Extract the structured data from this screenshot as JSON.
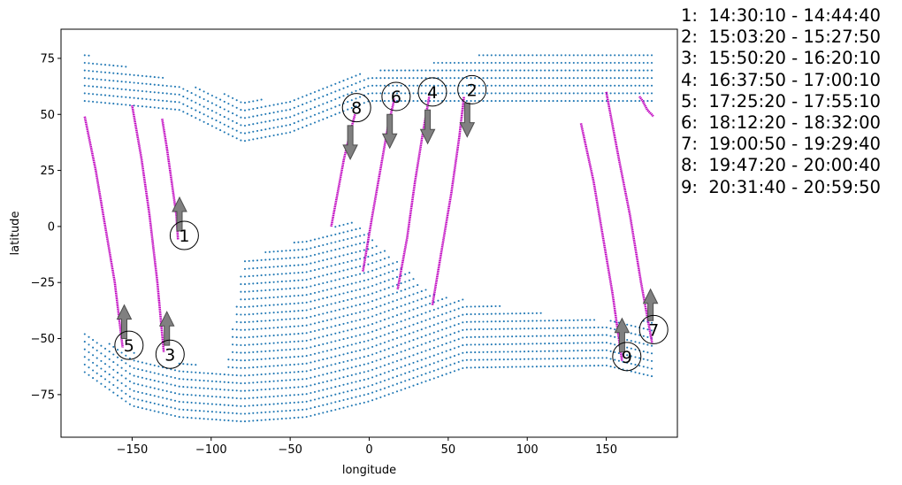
{
  "chart_data": {
    "type": "scatter",
    "title": "",
    "xlabel": "longitude",
    "ylabel": "latitude",
    "xlim": [
      -195,
      195
    ],
    "ylim": [
      -94,
      88
    ],
    "xticks": [
      -150,
      -100,
      -50,
      0,
      50,
      100,
      150
    ],
    "yticks": [
      -75,
      -50,
      -25,
      0,
      25,
      50,
      75
    ],
    "xtick_labels": [
      "−150",
      "−100",
      "−50",
      "0",
      "50",
      "100",
      "150"
    ],
    "ytick_labels": [
      "−75",
      "−50",
      "−25",
      "0",
      "25",
      "50",
      "75"
    ],
    "grid": false,
    "colors": {
      "points": "#1f77b4",
      "tracks": "#bf00bf",
      "arrows": "#808080"
    },
    "point_regions": [
      {
        "x": [
          -180,
          180
        ],
        "y_top": [
          [
            -180,
            77
          ],
          [
            -100,
            60
          ],
          [
            -60,
            56
          ],
          [
            -10,
            68
          ],
          [
            40,
            73
          ],
          [
            80,
            78
          ],
          [
            180,
            78
          ]
        ],
        "y_bottom": [
          [
            -180,
            56
          ],
          [
            -120,
            52
          ],
          [
            -80,
            38
          ],
          [
            -50,
            42
          ],
          [
            0,
            56
          ],
          [
            60,
            56
          ],
          [
            180,
            56
          ]
        ]
      },
      {
        "x": [
          -180,
          180
        ],
        "y_top": [
          [
            -180,
            -48
          ],
          [
            -135,
            -60
          ],
          [
            -90,
            -63
          ],
          [
            -80,
            -15
          ],
          [
            -40,
            -5
          ],
          [
            -10,
            3
          ],
          [
            40,
            -30
          ],
          [
            120,
            -40
          ],
          [
            150,
            -42
          ],
          [
            180,
            -42
          ]
        ],
        "y_bottom": [
          [
            -180,
            -65
          ],
          [
            -150,
            -80
          ],
          [
            -120,
            -85
          ],
          [
            -80,
            -87
          ],
          [
            -40,
            -85
          ],
          [
            0,
            -78
          ],
          [
            60,
            -63
          ],
          [
            150,
            -62
          ],
          [
            180,
            -67
          ]
        ]
      }
    ],
    "tracks": [
      {
        "id": "1",
        "time": "14:30:10 - 14:44:40",
        "x": [
          -131,
          -128,
          -125,
          -122,
          -121
        ],
        "y": [
          48,
          35,
          20,
          5,
          -6
        ],
        "arrow": {
          "x": -120,
          "y_from": -2,
          "y_to": 13
        },
        "label_xy": [
          -117,
          -4
        ]
      },
      {
        "id": "2",
        "time": "15:03:20 - 15:27:50",
        "x": [
          40,
          46,
          52,
          57,
          60
        ],
        "y": [
          -35,
          -10,
          15,
          40,
          58
        ],
        "arrow": {
          "x": 62,
          "y_from": 55,
          "y_to": 40
        },
        "label_xy": [
          65,
          61
        ]
      },
      {
        "id": "3",
        "time": "15:50:20 - 16:20:10",
        "x": [
          -150,
          -144,
          -139,
          -134,
          -130
        ],
        "y": [
          54,
          30,
          5,
          -25,
          -56
        ],
        "arrow": {
          "x": -128,
          "y_from": -53,
          "y_to": -38
        },
        "label_xy": [
          -126,
          -57
        ]
      },
      {
        "id": "4",
        "time": "16:37:50 - 17:00:10",
        "x": [
          18,
          24,
          29,
          34,
          38
        ],
        "y": [
          -28,
          -5,
          20,
          42,
          58
        ],
        "arrow": {
          "x": 37,
          "y_from": 52,
          "y_to": 37
        },
        "label_xy": [
          40,
          60
        ]
      },
      {
        "id": "5",
        "time": "17:25:20 - 17:55:10",
        "x": [
          -180,
          -173,
          -167,
          -161,
          -156
        ],
        "y": [
          49,
          25,
          0,
          -25,
          -54
        ],
        "arrow": {
          "x": -155,
          "y_from": -50,
          "y_to": -35
        },
        "label_xy": [
          -152,
          -53
        ]
      },
      {
        "id": "6",
        "time": "18:12:20 - 18:32:00",
        "x": [
          -4,
          2,
          7,
          12,
          16
        ],
        "y": [
          -20,
          5,
          25,
          45,
          57
        ],
        "arrow": {
          "x": 13,
          "y_from": 50,
          "y_to": 35
        },
        "label_xy": [
          17,
          58
        ]
      },
      {
        "id": "7",
        "time": "19:00:50 - 19:29:40",
        "x": [
          150,
          158,
          165,
          172,
          179
        ],
        "y": [
          60,
          30,
          5,
          -25,
          -52
        ],
        "arrow": {
          "x": 178,
          "y_from": -42,
          "y_to": -28
        },
        "label_xy": [
          180,
          -46
        ]
      },
      {
        "id": "8",
        "time": "19:47:20 - 20:00:40",
        "x": [
          -24,
          -20,
          -16,
          -12,
          -9
        ],
        "y": [
          0,
          15,
          30,
          42,
          50
        ],
        "arrow": {
          "x": -12,
          "y_from": 45,
          "y_to": 30
        },
        "label_xy": [
          -8,
          53
        ]
      },
      {
        "id": "9",
        "time": "20:31:40 - 20:59:50",
        "x": [
          134,
          142,
          148,
          154,
          160
        ],
        "y": [
          46,
          20,
          -5,
          -30,
          -60
        ],
        "arrow": {
          "x": 160,
          "y_from": -56,
          "y_to": -41
        },
        "label_xy": [
          163,
          -58
        ]
      },
      {
        "id": "",
        "time": "",
        "x": [
          171,
          173,
          176,
          180
        ],
        "y": [
          58,
          56,
          52,
          49
        ],
        "arrow": null,
        "label_xy": null
      }
    ]
  },
  "legend": {
    "entries": [
      "1:  14:30:10 - 14:44:40",
      "2:  15:03:20 - 15:27:50",
      "3:  15:50:20 - 16:20:10",
      "4:  16:37:50 - 17:00:10",
      "5:  17:25:20 - 17:55:10",
      "6:  18:12:20 - 18:32:00",
      "7:  19:00:50 - 19:29:40",
      "8:  19:47:20 - 20:00:40",
      "9:  20:31:40 - 20:59:50"
    ]
  }
}
